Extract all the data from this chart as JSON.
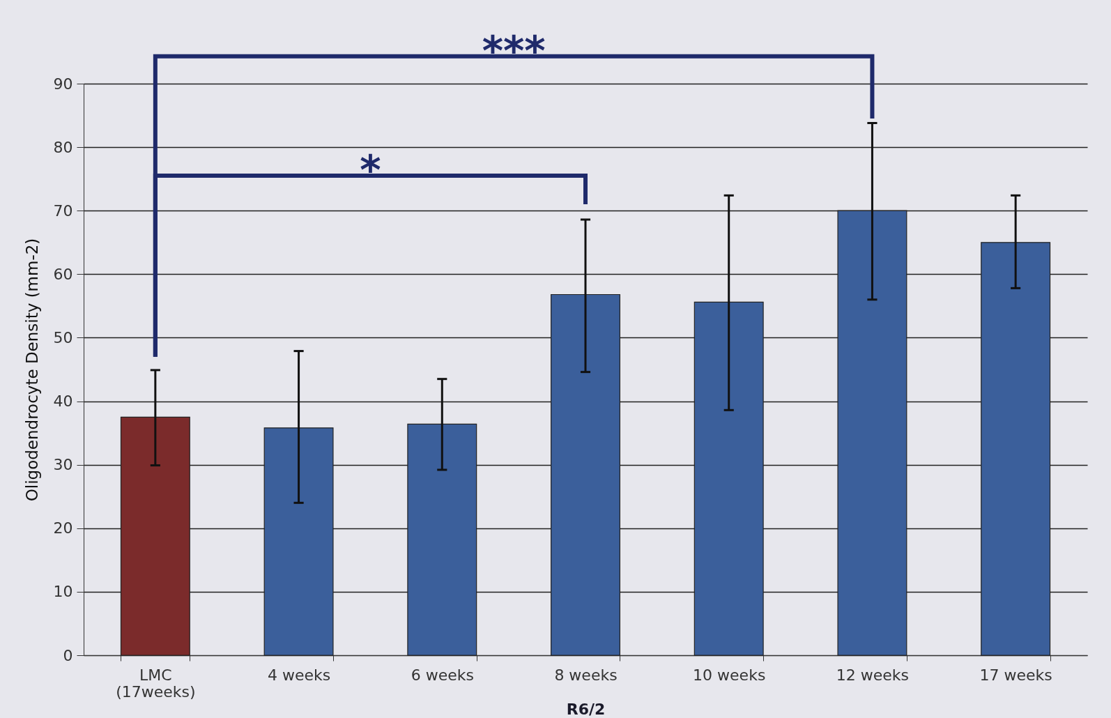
{
  "chart_data": {
    "type": "bar",
    "xlabel": "R6/2",
    "ylabel": "Oligodendrocyte Density (mm-2)",
    "categories": [
      "LMC\n(17weeks)",
      "4 weeks",
      "6 weeks",
      "8 weeks",
      "10 weeks",
      "12 weeks",
      "17 weeks"
    ],
    "values": [
      37.5,
      35.8,
      36.4,
      56.8,
      55.6,
      70,
      65
    ],
    "errors": [
      [
        29.9,
        44.9
      ],
      [
        24,
        47.9
      ],
      [
        29.2,
        43.5
      ],
      [
        44.6,
        68.6
      ],
      [
        38.6,
        72.4
      ],
      [
        56,
        83.8
      ],
      [
        57.8,
        72.4
      ]
    ],
    "colors": [
      "#7b2b2b",
      "#3b5f9b",
      "#3b5f9b",
      "#3b5f9b",
      "#3b5f9b",
      "#3b5f9b",
      "#3b5f9b"
    ],
    "ylim": [
      0,
      90
    ],
    "yticks": [
      0,
      10,
      20,
      30,
      40,
      50,
      60,
      70,
      80,
      90
    ],
    "grid": "y",
    "legend": false,
    "annotations": [
      "***",
      "*"
    ]
  }
}
